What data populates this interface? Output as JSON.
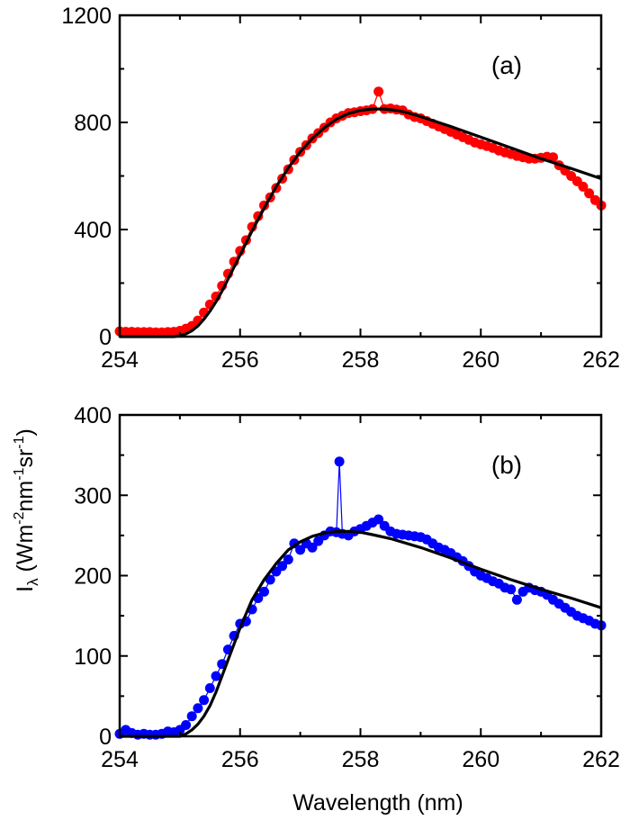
{
  "figure": {
    "ylabel_main": "I",
    "ylabel_sub": "λ",
    "ylabel_open": " (Wm",
    "ylabel_sup1": "-2",
    "ylabel_mid1": "nm",
    "ylabel_sup2": "-1",
    "ylabel_mid2": "sr",
    "ylabel_sup3": "-1",
    "ylabel_close": ")",
    "xlabel": "Wavelength (nm)"
  },
  "colors": {
    "panel_a_points": "#ff0000",
    "panel_b_points": "#0000ff",
    "fit_line": "#000000"
  },
  "chart_data": [
    {
      "type": "scatter",
      "label": "(a)",
      "xlim": [
        254,
        262
      ],
      "ylim": [
        0,
        1200
      ],
      "xticks": [
        254,
        256,
        258,
        260,
        262
      ],
      "yticks": [
        0,
        400,
        800,
        1200
      ],
      "grid": false,
      "series": [
        {
          "style": "markers+line",
          "color": "#ff0000",
          "points": [
            [
              254.0,
              20
            ],
            [
              254.1,
              18
            ],
            [
              254.2,
              18
            ],
            [
              254.3,
              17
            ],
            [
              254.4,
              17
            ],
            [
              254.5,
              17
            ],
            [
              254.6,
              16
            ],
            [
              254.7,
              16
            ],
            [
              254.8,
              17
            ],
            [
              254.9,
              18
            ],
            [
              255.0,
              22
            ],
            [
              255.1,
              30
            ],
            [
              255.2,
              40
            ],
            [
              255.3,
              60
            ],
            [
              255.4,
              90
            ],
            [
              255.5,
              120
            ],
            [
              255.6,
              150
            ],
            [
              255.7,
              190
            ],
            [
              255.8,
              235
            ],
            [
              255.9,
              280
            ],
            [
              256.0,
              320
            ],
            [
              256.1,
              360
            ],
            [
              256.2,
              410
            ],
            [
              256.3,
              450
            ],
            [
              256.4,
              490
            ],
            [
              256.5,
              520
            ],
            [
              256.6,
              555
            ],
            [
              256.7,
              590
            ],
            [
              256.8,
              625
            ],
            [
              256.9,
              660
            ],
            [
              257.0,
              690
            ],
            [
              257.1,
              715
            ],
            [
              257.2,
              740
            ],
            [
              257.3,
              760
            ],
            [
              257.4,
              780
            ],
            [
              257.5,
              800
            ],
            [
              257.6,
              815
            ],
            [
              257.7,
              825
            ],
            [
              257.8,
              835
            ],
            [
              257.9,
              838
            ],
            [
              258.0,
              842
            ],
            [
              258.1,
              845
            ],
            [
              258.2,
              850
            ],
            [
              258.3,
              915
            ],
            [
              258.4,
              850
            ],
            [
              258.5,
              852
            ],
            [
              258.6,
              848
            ],
            [
              258.7,
              845
            ],
            [
              258.8,
              830
            ],
            [
              258.9,
              820
            ],
            [
              259.0,
              815
            ],
            [
              259.1,
              805
            ],
            [
              259.2,
              795
            ],
            [
              259.3,
              785
            ],
            [
              259.4,
              775
            ],
            [
              259.5,
              765
            ],
            [
              259.6,
              755
            ],
            [
              259.7,
              745
            ],
            [
              259.8,
              735
            ],
            [
              259.9,
              725
            ],
            [
              260.0,
              718
            ],
            [
              260.1,
              712
            ],
            [
              260.2,
              705
            ],
            [
              260.3,
              695
            ],
            [
              260.4,
              688
            ],
            [
              260.5,
              682
            ],
            [
              260.6,
              675
            ],
            [
              260.7,
              670
            ],
            [
              260.8,
              665
            ],
            [
              260.9,
              665
            ],
            [
              261.0,
              668
            ],
            [
              261.1,
              672
            ],
            [
              261.2,
              670
            ],
            [
              261.3,
              640
            ],
            [
              261.4,
              620
            ],
            [
              261.5,
              600
            ],
            [
              261.6,
              580
            ],
            [
              261.7,
              560
            ],
            [
              261.8,
              535
            ],
            [
              261.9,
              510
            ],
            [
              262.0,
              490
            ]
          ]
        },
        {
          "style": "line",
          "color": "#000000",
          "points": [
            [
              254.0,
              0
            ],
            [
              254.9,
              0
            ],
            [
              255.0,
              3
            ],
            [
              255.1,
              10
            ],
            [
              255.2,
              22
            ],
            [
              255.3,
              40
            ],
            [
              255.4,
              65
            ],
            [
              255.5,
              95
            ],
            [
              255.6,
              130
            ],
            [
              255.7,
              170
            ],
            [
              255.8,
              215
            ],
            [
              255.9,
              260
            ],
            [
              256.0,
              305
            ],
            [
              256.2,
              395
            ],
            [
              256.4,
              480
            ],
            [
              256.6,
              560
            ],
            [
              256.8,
              630
            ],
            [
              257.0,
              690
            ],
            [
              257.2,
              740
            ],
            [
              257.4,
              780
            ],
            [
              257.6,
              812
            ],
            [
              257.8,
              833
            ],
            [
              258.0,
              845
            ],
            [
              258.2,
              850
            ],
            [
              258.4,
              850
            ],
            [
              258.6,
              845
            ],
            [
              258.8,
              835
            ],
            [
              259.0,
              822
            ],
            [
              259.5,
              785
            ],
            [
              260.0,
              745
            ],
            [
              260.5,
              705
            ],
            [
              261.0,
              665
            ],
            [
              261.5,
              628
            ],
            [
              262.0,
              590
            ]
          ]
        }
      ]
    },
    {
      "type": "scatter",
      "label": "(b)",
      "xlim": [
        254,
        262
      ],
      "ylim": [
        0,
        400
      ],
      "xticks": [
        254,
        256,
        258,
        260,
        262
      ],
      "yticks": [
        0,
        100,
        200,
        300,
        400
      ],
      "grid": false,
      "series": [
        {
          "style": "markers+line",
          "color": "#0000ff",
          "points": [
            [
              254.0,
              3
            ],
            [
              254.1,
              8
            ],
            [
              254.2,
              4
            ],
            [
              254.3,
              2
            ],
            [
              254.4,
              3
            ],
            [
              254.5,
              2
            ],
            [
              254.6,
              2
            ],
            [
              254.7,
              3
            ],
            [
              254.8,
              6
            ],
            [
              254.9,
              5
            ],
            [
              255.0,
              8
            ],
            [
              255.1,
              14
            ],
            [
              255.2,
              25
            ],
            [
              255.3,
              35
            ],
            [
              255.4,
              45
            ],
            [
              255.5,
              60
            ],
            [
              255.6,
              75
            ],
            [
              255.7,
              90
            ],
            [
              255.8,
              108
            ],
            [
              255.9,
              125
            ],
            [
              256.0,
              140
            ],
            [
              256.1,
              143
            ],
            [
              256.2,
              158
            ],
            [
              256.3,
              172
            ],
            [
              256.4,
              180
            ],
            [
              256.5,
              195
            ],
            [
              256.6,
              205
            ],
            [
              256.7,
              212
            ],
            [
              256.8,
              220
            ],
            [
              256.9,
              240
            ],
            [
              257.0,
              232
            ],
            [
              257.1,
              240
            ],
            [
              257.2,
              235
            ],
            [
              257.3,
              243
            ],
            [
              257.4,
              250
            ],
            [
              257.5,
              255
            ],
            [
              257.6,
              254
            ],
            [
              257.65,
              342
            ],
            [
              257.7,
              252
            ],
            [
              257.8,
              250
            ],
            [
              257.9,
              255
            ],
            [
              258.0,
              258
            ],
            [
              258.1,
              262
            ],
            [
              258.2,
              266
            ],
            [
              258.3,
              270
            ],
            [
              258.4,
              262
            ],
            [
              258.5,
              255
            ],
            [
              258.6,
              252
            ],
            [
              258.7,
              251
            ],
            [
              258.8,
              250
            ],
            [
              258.9,
              249
            ],
            [
              259.0,
              248
            ],
            [
              259.1,
              245
            ],
            [
              259.2,
              240
            ],
            [
              259.3,
              235
            ],
            [
              259.4,
              232
            ],
            [
              259.5,
              228
            ],
            [
              259.6,
              223
            ],
            [
              259.7,
              218
            ],
            [
              259.8,
              212
            ],
            [
              259.9,
              205
            ],
            [
              260.0,
              200
            ],
            [
              260.1,
              197
            ],
            [
              260.2,
              193
            ],
            [
              260.3,
              190
            ],
            [
              260.4,
              185
            ],
            [
              260.5,
              183
            ],
            [
              260.6,
              170
            ],
            [
              260.7,
              180
            ],
            [
              260.8,
              185
            ],
            [
              260.9,
              182
            ],
            [
              261.0,
              180
            ],
            [
              261.1,
              176
            ],
            [
              261.2,
              170
            ],
            [
              261.3,
              165
            ],
            [
              261.4,
              160
            ],
            [
              261.5,
              155
            ],
            [
              261.6,
              150
            ],
            [
              261.7,
              147
            ],
            [
              261.8,
              144
            ],
            [
              261.9,
              140
            ],
            [
              262.0,
              138
            ]
          ]
        },
        {
          "style": "line",
          "color": "#000000",
          "points": [
            [
              254.0,
              0
            ],
            [
              255.0,
              0
            ],
            [
              255.1,
              3
            ],
            [
              255.2,
              8
            ],
            [
              255.3,
              15
            ],
            [
              255.4,
              25
            ],
            [
              255.5,
              38
            ],
            [
              255.6,
              55
            ],
            [
              255.7,
              75
            ],
            [
              255.8,
              95
            ],
            [
              255.9,
              115
            ],
            [
              256.0,
              135
            ],
            [
              256.2,
              170
            ],
            [
              256.4,
              195
            ],
            [
              256.6,
              215
            ],
            [
              256.8,
              232
            ],
            [
              257.0,
              242
            ],
            [
              257.2,
              249
            ],
            [
              257.4,
              253
            ],
            [
              257.6,
              255
            ],
            [
              257.8,
              255
            ],
            [
              258.0,
              254
            ],
            [
              258.2,
              251
            ],
            [
              258.5,
              246
            ],
            [
              259.0,
              235
            ],
            [
              259.5,
              222
            ],
            [
              260.0,
              208
            ],
            [
              260.5,
              195
            ],
            [
              261.0,
              183
            ],
            [
              261.5,
              172
            ],
            [
              262.0,
              160
            ]
          ]
        }
      ]
    }
  ]
}
